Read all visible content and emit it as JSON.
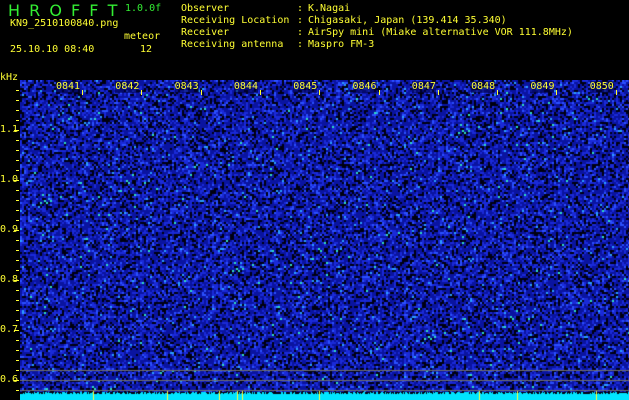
{
  "header": {
    "app_name": "H R O F F T",
    "version": "1.0.0f",
    "filename": "KN9_2510100840.png",
    "datetime": "25.10.10 08:40",
    "count_label": "meteor",
    "count_value": "12",
    "info": [
      {
        "label": "Observer",
        "value": "K.Nagai"
      },
      {
        "label": "Receiving Location",
        "value": "Chigasaki, Japan (139.414 35.340)"
      },
      {
        "label": "Receiver",
        "value": "AirSpy mini (Miake alternative VOR 111.8MHz)"
      },
      {
        "label": "Receiving antenna",
        "value": "Maspro FM-3"
      }
    ]
  },
  "axis": {
    "y_unit": "kHz",
    "y_ticks": [
      "1.1",
      "1.0",
      "0.9",
      "0.8",
      "0.7",
      "0.6"
    ],
    "x_ticks": [
      "0841",
      "0842",
      "0843",
      "0844",
      "0845",
      "0846",
      "0847",
      "0848",
      "0849",
      "0850"
    ]
  },
  "colors": {
    "text": "#ffff33",
    "title": "#33ee33",
    "background": "#000000",
    "noise": "#1a2ad8",
    "baseline": "#00e5ff"
  }
}
